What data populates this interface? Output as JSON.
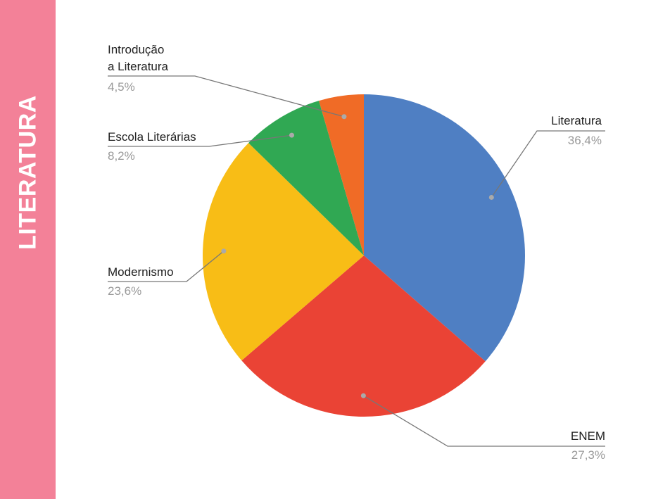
{
  "sidebar": {
    "title": "LITERATURA"
  },
  "chart_data": {
    "type": "pie",
    "categories": [
      "Literatura",
      "ENEM",
      "Modernismo",
      "Escola Literárias",
      "Introdução\na Literatura"
    ],
    "values": [
      36.4,
      27.3,
      23.6,
      8.2,
      4.5
    ],
    "value_labels": [
      "36,4%",
      "27,3%",
      "23,6%",
      "8,2%",
      "4,5%"
    ],
    "colors": [
      "#4f7fc3",
      "#ea4335",
      "#f8bd16",
      "#30a853",
      "#f06b26"
    ]
  }
}
